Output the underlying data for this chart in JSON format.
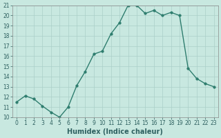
{
  "title": "",
  "xlabel": "Humidex (Indice chaleur)",
  "x": [
    0,
    1,
    2,
    3,
    4,
    5,
    6,
    7,
    8,
    9,
    10,
    11,
    12,
    13,
    14,
    15,
    16,
    17,
    18,
    19,
    20,
    21,
    22,
    23
  ],
  "y": [
    11.5,
    12.1,
    11.8,
    11.1,
    10.5,
    10.0,
    11.0,
    13.1,
    14.5,
    16.2,
    16.5,
    18.2,
    19.3,
    21.0,
    21.0,
    20.2,
    20.5,
    20.0,
    20.3,
    20.0,
    14.8,
    13.8,
    13.3,
    13.0
  ],
  "line_color": "#2e7d6e",
  "marker": "o",
  "marker_size": 2.5,
  "bg_color": "#c8e8e0",
  "grid_color": "#aacfc8",
  "ylim": [
    10,
    21
  ],
  "xlim": [
    -0.5,
    23.5
  ],
  "yticks": [
    10,
    11,
    12,
    13,
    14,
    15,
    16,
    17,
    18,
    19,
    20,
    21
  ],
  "xticks": [
    0,
    1,
    2,
    3,
    4,
    5,
    6,
    7,
    8,
    9,
    10,
    11,
    12,
    13,
    14,
    15,
    16,
    17,
    18,
    19,
    20,
    21,
    22,
    23
  ],
  "tick_fontsize": 5.5,
  "xlabel_fontsize": 7,
  "line_width": 1.0
}
